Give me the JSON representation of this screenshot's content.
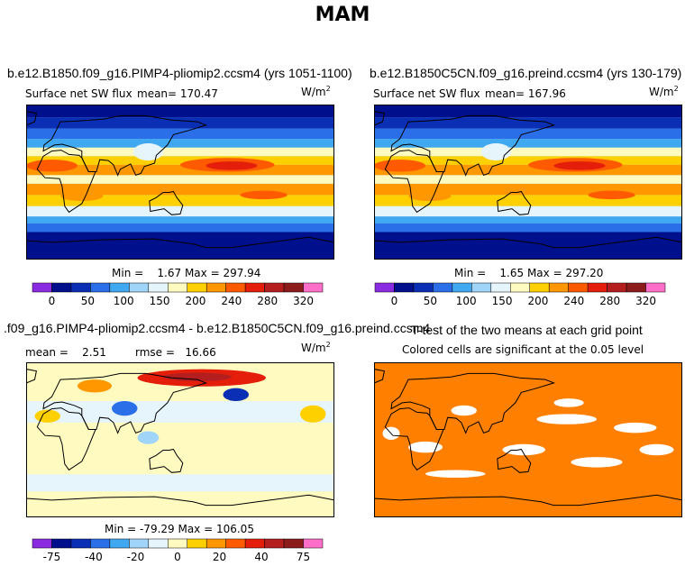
{
  "figure": {
    "title": "MAM"
  },
  "colors": {
    "flux_scale": [
      "#8a2be2",
      "#000f8c",
      "#0a2fb4",
      "#2a6ee8",
      "#40a8f0",
      "#a0d4f8",
      "#e6f4fc",
      "#fffac0",
      "#ffd000",
      "#ff9800",
      "#ff5a00",
      "#e41e0a",
      "#b41e1e",
      "#8c1c1c",
      "#ff6ec8"
    ],
    "diff_scale": [
      "#8a2be2",
      "#000f8c",
      "#0a2fb4",
      "#2a6ee8",
      "#40a8f0",
      "#a0d4f8",
      "#e6f4fc",
      "#fffac0",
      "#ffd000",
      "#ff9800",
      "#ff5a00",
      "#e41e0a",
      "#b41e1e",
      "#8c1c1c",
      "#ff6ec8"
    ],
    "significance": "#ff7f00"
  },
  "panels": [
    {
      "title": "b.e12.B1850.f09_g16.PIMP4-pliomip2.ccsm4 (yrs 1051-1100)",
      "variable": "Surface net SW flux",
      "mean_text": "mean= 170.47",
      "units_base": "W/m",
      "units_exp": "2",
      "minmax_text": "Min =    1.67 Max = 297.94"
    },
    {
      "title": "b.e12.B1850C5CN.f09_g16.preind.ccsm4 (yrs 130-179)",
      "variable": "Surface net SW flux",
      "mean_text": "mean= 167.96",
      "units_base": "W/m",
      "units_exp": "2",
      "minmax_text": "Min =    1.65 Max = 297.20"
    },
    {
      "title": ".f09_g16.PIMP4-pliomip2.ccsm4 - b.e12.B1850C5CN.f09_g16.preind.ccsm4",
      "mean_text": "mean =    2.51",
      "rmse_text": "rmse =   16.66",
      "units_base": "W/m",
      "units_exp": "2",
      "minmax_text": "Min = -79.29 Max = 106.05"
    },
    {
      "title": "T-test of the two means at each grid point",
      "subtitle": "Colored cells are significant at the 0.05 level"
    }
  ],
  "chart_data": [
    {
      "type": "heatmap",
      "title": "b.e12.B1850.f09_g16.PIMP4-pliomip2.ccsm4 (yrs 1051-1100)",
      "variable": "Surface net SW flux",
      "units": "W/m^2",
      "mean": 170.47,
      "min": 1.67,
      "max": 297.94,
      "colorbar_levels": [
        0,
        25,
        50,
        75,
        100,
        125,
        150,
        175,
        200,
        220,
        240,
        260,
        280,
        300,
        320
      ],
      "colorbar_tick_labels": [
        "0",
        "50",
        "100",
        "150",
        "200",
        "240",
        "280",
        "320"
      ]
    },
    {
      "type": "heatmap",
      "title": "b.e12.B1850C5CN.f09_g16.preind.ccsm4 (yrs 130-179)",
      "variable": "Surface net SW flux",
      "units": "W/m^2",
      "mean": 167.96,
      "min": 1.65,
      "max": 297.2,
      "colorbar_levels": [
        0,
        25,
        50,
        75,
        100,
        125,
        150,
        175,
        200,
        220,
        240,
        260,
        280,
        300,
        320
      ],
      "colorbar_tick_labels": [
        "0",
        "50",
        "100",
        "150",
        "200",
        "240",
        "280",
        "320"
      ]
    },
    {
      "type": "heatmap",
      "title": ".f09_g16.PIMP4-pliomip2.ccsm4 - b.e12.B1850C5CN.f09_g16.preind.ccsm4",
      "units": "W/m^2",
      "mean": 2.51,
      "rmse": 16.66,
      "min": -79.29,
      "max": 106.05,
      "colorbar_levels": [
        -75,
        -50,
        -40,
        -30,
        -20,
        -10,
        -5,
        0,
        5,
        10,
        20,
        30,
        40,
        50,
        75
      ],
      "colorbar_tick_labels": [
        "-75",
        "-40",
        "-20",
        "0",
        "20",
        "40",
        "75"
      ]
    },
    {
      "type": "heatmap",
      "title": "T-test of the two means at each grid point",
      "subtitle": "Colored cells are significant at the 0.05 level",
      "significance_level": 0.05
    }
  ]
}
